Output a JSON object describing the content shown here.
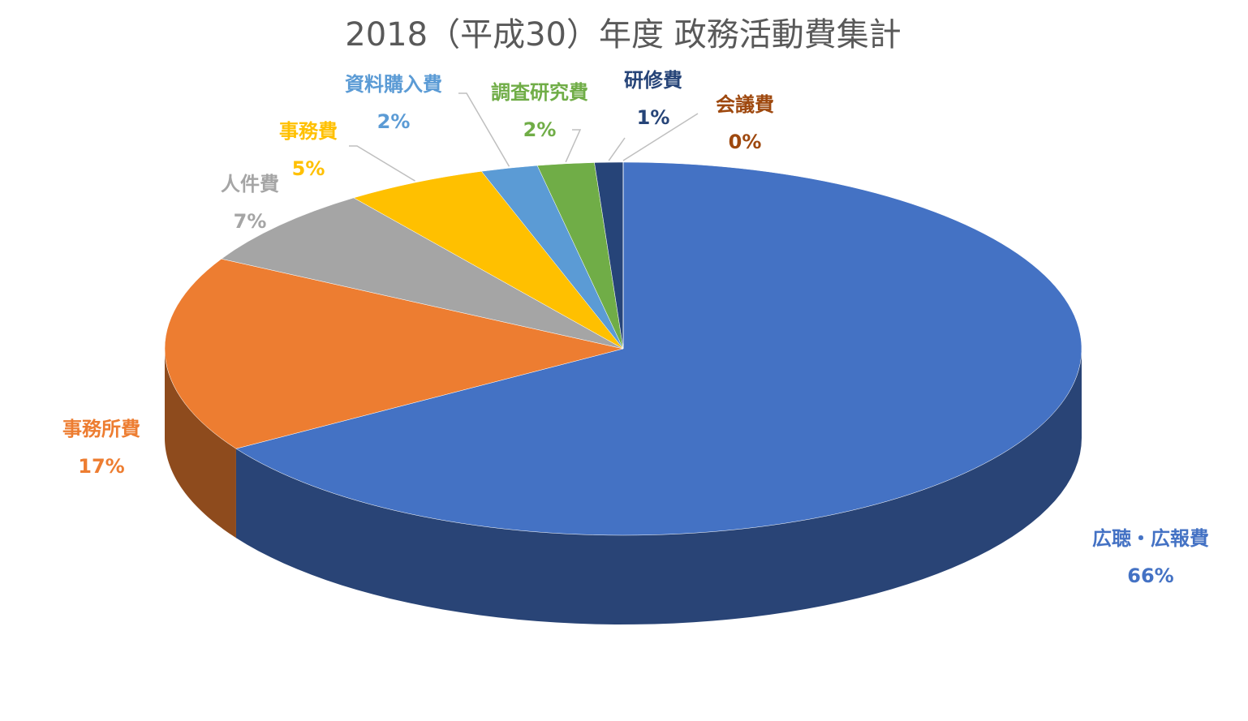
{
  "chart_data": {
    "type": "pie3d",
    "title": "2018（平成30）年度 政務活動費集計",
    "categories": [
      "広聴・広報費",
      "事務所費",
      "人件費",
      "事務費",
      "資料購入費",
      "調査研究費",
      "研修費",
      "会議費"
    ],
    "values": [
      66,
      17,
      7,
      5,
      2,
      2,
      1,
      0
    ],
    "value_labels": [
      "66%",
      "17%",
      "7%",
      "5%",
      "2%",
      "2%",
      "1%",
      "0%"
    ],
    "colors": [
      "#4472c4",
      "#ed7d31",
      "#a5a5a5",
      "#ffc000",
      "#5b9bd5",
      "#70ad47",
      "#264478",
      "#9e480e"
    ]
  }
}
